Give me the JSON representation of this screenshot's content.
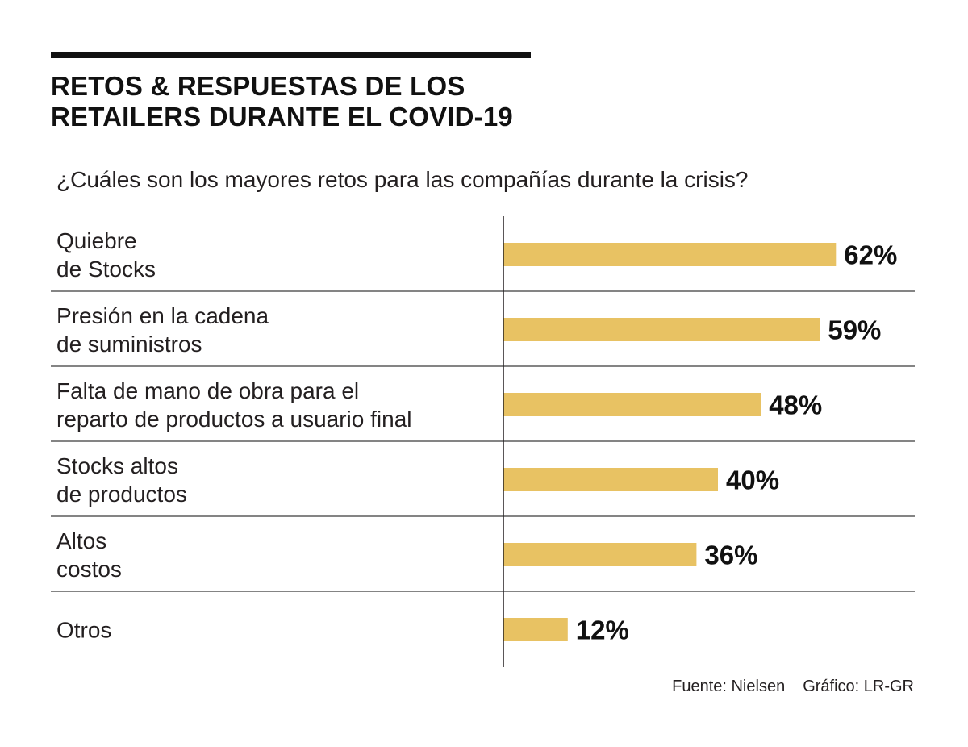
{
  "title_lines": [
    "RETOS & RESPUESTAS DE LOS",
    "RETAILERS DURANTE EL COVID-19"
  ],
  "subtitle": "¿Cuáles son los mayores retos para las compañías durante la crisis?",
  "source": "Fuente: Nielsen",
  "credit": "Gráfico: LR-GR",
  "colors": {
    "bar": "#e8c263",
    "axis": "#231f20",
    "separator": "#3a3a3a"
  },
  "chart_data": {
    "type": "bar",
    "orientation": "horizontal",
    "categories": [
      [
        "Quiebre",
        "de Stocks"
      ],
      [
        "Presión en la cadena",
        "de suministros"
      ],
      [
        "Falta de mano de obra para el",
        "reparto de productos a usuario final"
      ],
      [
        "Stocks altos",
        "de productos"
      ],
      [
        "Altos",
        "costos"
      ],
      [
        "Otros"
      ]
    ],
    "values": [
      62,
      59,
      48,
      40,
      36,
      12
    ],
    "value_labels": [
      "62%",
      "59%",
      "48%",
      "40%",
      "36%",
      "12%"
    ],
    "xlim": [
      0,
      100
    ]
  }
}
